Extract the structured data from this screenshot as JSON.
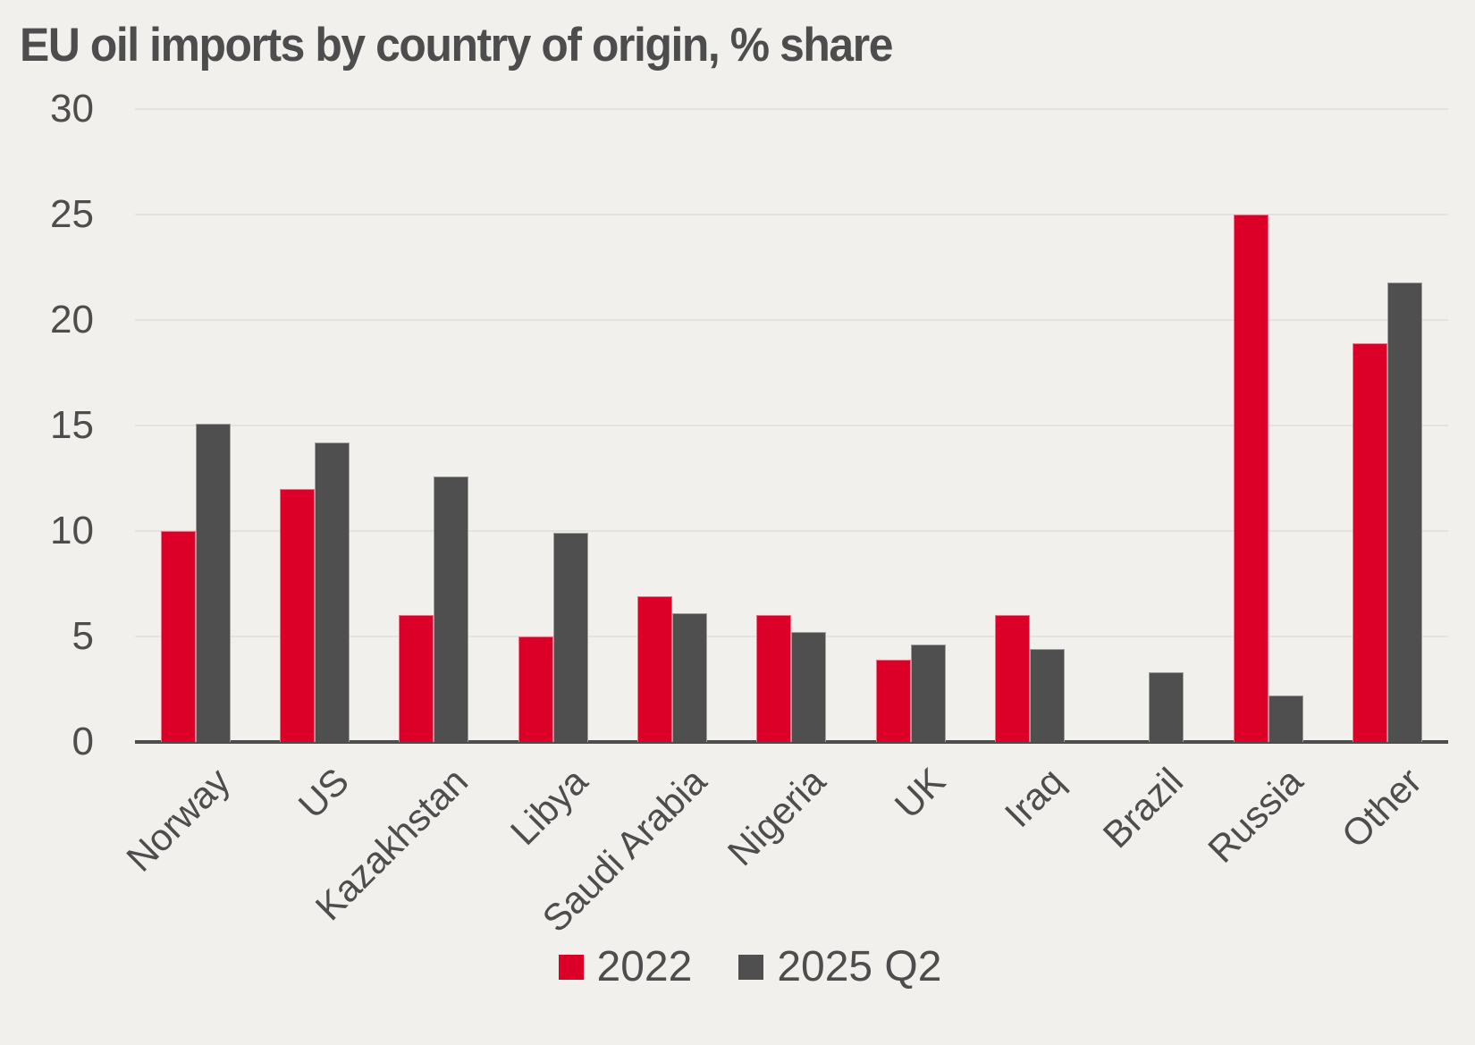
{
  "title": "EU oil imports by country of origin, % share",
  "colors": {
    "background": "#f1f0ed",
    "series_2022": "#dc0028",
    "series_2025": "#4f4f4f",
    "gridline": "#e4e2de",
    "axis": "#4d4d4d",
    "text": "#4d4d4d"
  },
  "chart_data": {
    "type": "bar",
    "title": "EU oil imports by country of origin, % share",
    "categories": [
      "Norway",
      "US",
      "Kazakhstan",
      "Libya",
      "Saudi Arabia",
      "Nigeria",
      "UK",
      "Iraq",
      "Brazil",
      "Russia",
      "Other"
    ],
    "series": [
      {
        "name": "2022",
        "color": "#dc0028",
        "values": [
          10.0,
          12.0,
          6.0,
          5.0,
          6.9,
          6.0,
          3.9,
          6.0,
          0,
          25.0,
          18.9
        ]
      },
      {
        "name": "2025 Q2",
        "color": "#4f4f4f",
        "values": [
          15.1,
          14.2,
          12.6,
          9.9,
          6.1,
          5.2,
          4.6,
          4.4,
          3.3,
          2.2,
          21.8
        ]
      }
    ],
    "xlabel": "",
    "ylabel": "",
    "ylim": [
      0,
      30
    ],
    "yticks": [
      0,
      5,
      10,
      15,
      20,
      25,
      30
    ],
    "grid": true,
    "legend_position": "bottom-center"
  }
}
